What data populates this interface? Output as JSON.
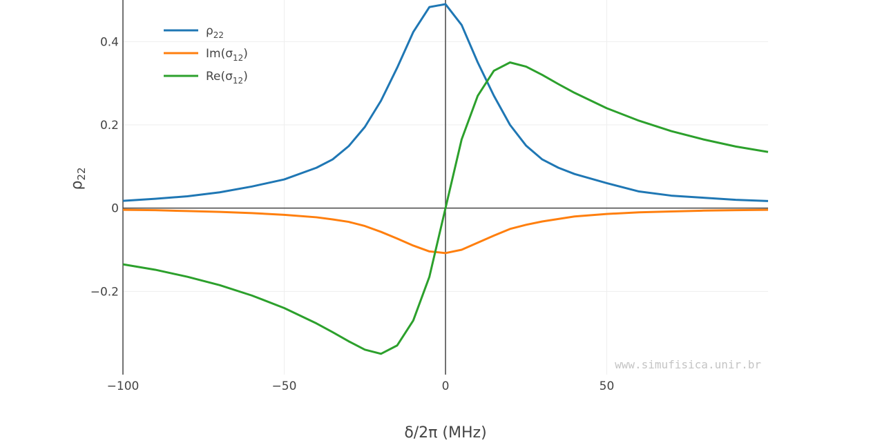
{
  "colors": {
    "rho22": "#1f77b4",
    "im_sigma12": "#ff7f0e",
    "re_sigma12": "#2ca02c",
    "grid": "#eeeeee",
    "zeroline": "#444444",
    "axis": "#444444",
    "text": "#444444",
    "watermark": "#c4c4c4"
  },
  "watermark": "www.simufisica.unir.br",
  "chart_data": {
    "type": "line",
    "xlabel": "δ/2π (MHz)",
    "ylabel": {
      "base": "ρ",
      "sub": "22"
    },
    "xlim": [
      -100,
      100
    ],
    "ylim": [
      -0.4,
      0.5
    ],
    "x_ticks": [
      -100,
      -50,
      0,
      50
    ],
    "x_tick_labels": [
      "−100",
      "−50",
      "0",
      "50"
    ],
    "y_ticks": [
      -0.2,
      0,
      0.2,
      0.4
    ],
    "y_tick_labels": [
      "−0.2",
      "0",
      "0.2",
      "0.4"
    ],
    "grid": true,
    "legend_position": "top-left",
    "x": [
      -100,
      -90,
      -80,
      -70,
      -60,
      -50,
      -40,
      -35,
      -30,
      -25,
      -20,
      -15,
      -10,
      -5,
      0,
      5,
      10,
      15,
      20,
      25,
      30,
      35,
      40,
      50,
      60,
      70,
      80,
      90,
      100
    ],
    "series": [
      {
        "key": "rho22",
        "name": {
          "base": "ρ",
          "sub": "22",
          "suffix": ""
        },
        "color": "#1f77b4",
        "values": [
          0.0175,
          0.0225,
          0.0285,
          0.038,
          0.052,
          0.069,
          0.097,
          0.117,
          0.149,
          0.195,
          0.258,
          0.337,
          0.423,
          0.483,
          0.49,
          0.44,
          0.35,
          0.27,
          0.2,
          0.15,
          0.117,
          0.097,
          0.082,
          0.06,
          0.04,
          0.03,
          0.025,
          0.02,
          0.017
        ]
      },
      {
        "key": "im_sigma12",
        "name": {
          "base": "Im(σ",
          "sub": "12",
          "suffix": ")"
        },
        "color": "#ff7f0e",
        "values": [
          -0.004,
          -0.005,
          -0.007,
          -0.009,
          -0.012,
          -0.016,
          -0.022,
          -0.027,
          -0.033,
          -0.043,
          -0.057,
          -0.073,
          -0.09,
          -0.104,
          -0.108,
          -0.1,
          -0.083,
          -0.066,
          -0.05,
          -0.04,
          -0.032,
          -0.026,
          -0.02,
          -0.014,
          -0.01,
          -0.008,
          -0.006,
          -0.005,
          -0.004
        ]
      },
      {
        "key": "re_sigma12",
        "name": {
          "base": "Re(σ",
          "sub": "12",
          "suffix": ")"
        },
        "color": "#2ca02c",
        "values": [
          -0.135,
          -0.148,
          -0.165,
          -0.185,
          -0.21,
          -0.24,
          -0.277,
          -0.298,
          -0.32,
          -0.34,
          -0.35,
          -0.33,
          -0.27,
          -0.165,
          0.0,
          0.165,
          0.27,
          0.33,
          0.35,
          0.34,
          0.32,
          0.298,
          0.277,
          0.24,
          0.21,
          0.185,
          0.165,
          0.148,
          0.135
        ]
      }
    ]
  }
}
